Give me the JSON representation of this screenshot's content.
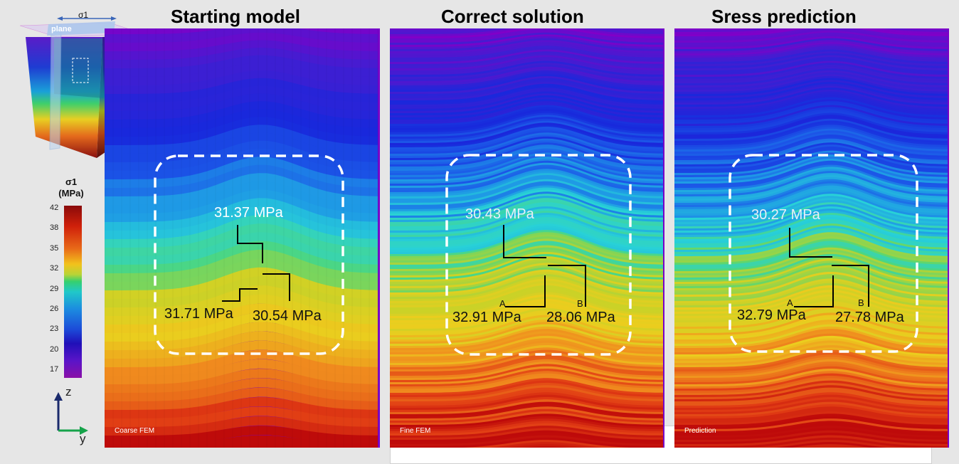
{
  "titles": {
    "starting": "Starting model",
    "correct": "Correct solution",
    "prediction": "Sress prediction"
  },
  "inset": {
    "sigma_label": "σ1",
    "plane_label": "plane"
  },
  "colorbar": {
    "title_line1": "σ1",
    "title_line2": "(MPa)",
    "ticks": [
      "42",
      "38",
      "35",
      "32",
      "29",
      "26",
      "23",
      "20",
      "17"
    ]
  },
  "axes": {
    "z_label": "z",
    "y_label": "y"
  },
  "panels": {
    "coarse": {
      "corner_label": "Coarse FEM",
      "top_value": "31.37 MPa",
      "left_value": "31.71 MPa",
      "right_value": "30.54 MPa"
    },
    "fine": {
      "corner_label": "Fine FEM",
      "top_value": "30.43 MPa",
      "point_a": "A",
      "point_b": "B",
      "left_value": "32.91 MPa",
      "right_value": "28.06 MPa"
    },
    "prediction": {
      "corner_label": "Prediction",
      "top_value": "30.27 MPa",
      "point_a": "A",
      "point_b": "B",
      "left_value": "32.79 MPa",
      "right_value": "27.78 MPa"
    }
  },
  "colors": {
    "dashed_box": "#ffffff",
    "leader_line": "#000000",
    "axis_z": "#1a2a6c",
    "axis_y": "#16a34a"
  }
}
